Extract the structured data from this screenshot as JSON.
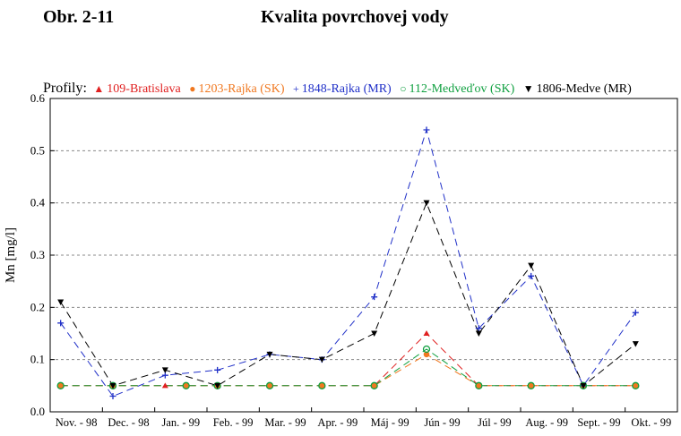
{
  "figure": {
    "label": "Obr. 2-11",
    "title": "Kvalita povrchovej vody"
  },
  "legend_title": "Profily:",
  "chart_data": {
    "type": "line",
    "ylabel": "Mn [mg/l]",
    "xlabel": "",
    "ylim": [
      0,
      0.6
    ],
    "yticks": [
      "0.0",
      "0.1",
      "0.2",
      "0.3",
      "0.4",
      "0.5",
      "0.6"
    ],
    "grid": "horizontal dashed",
    "legend_position": "top",
    "categories": [
      "Nov. - 98",
      "Dec. - 98",
      "Jan. - 99",
      "Feb. - 99",
      "Mar. - 99",
      "Apr. - 99",
      "Máj - 99",
      "Jún - 99",
      "Júl - 99",
      "Aug. - 99",
      "Sept. - 99",
      "Okt. - 99"
    ],
    "series": [
      {
        "name": "109-Bratislava",
        "color": "#e02020",
        "marker": "triangle-up",
        "points": [
          [
            0.2,
            0.05
          ],
          [
            1.2,
            0.05
          ],
          [
            2.2,
            0.05
          ],
          [
            3.2,
            0.05
          ],
          [
            4.2,
            0.05
          ],
          [
            5.2,
            0.05
          ],
          [
            6.2,
            0.05
          ],
          [
            7.2,
            0.15
          ],
          [
            8.2,
            0.05
          ],
          [
            9.2,
            0.05
          ],
          [
            10.2,
            0.05
          ],
          [
            11.2,
            0.05
          ]
        ]
      },
      {
        "name": "1203-Rajka (SK)",
        "color": "#f07820",
        "marker": "circle-filled",
        "points": [
          [
            0.2,
            0.05
          ],
          [
            1.2,
            0.05
          ],
          [
            2.6,
            0.05
          ],
          [
            3.2,
            0.05
          ],
          [
            4.2,
            0.05
          ],
          [
            5.2,
            0.05
          ],
          [
            6.2,
            0.05
          ],
          [
            7.2,
            0.11
          ],
          [
            8.2,
            0.05
          ],
          [
            9.2,
            0.05
          ],
          [
            10.2,
            0.05
          ],
          [
            11.2,
            0.05
          ]
        ]
      },
      {
        "name": "1848-Rajka (MR)",
        "color": "#2030c8",
        "marker": "plus",
        "points": [
          [
            0.2,
            0.17
          ],
          [
            1.2,
            0.03
          ],
          [
            2.2,
            0.07
          ],
          [
            3.2,
            0.08
          ],
          [
            4.2,
            0.11
          ],
          [
            5.2,
            0.1
          ],
          [
            6.2,
            0.22
          ],
          [
            7.2,
            0.54
          ],
          [
            8.2,
            0.16
          ],
          [
            9.2,
            0.26
          ],
          [
            10.2,
            0.05
          ],
          [
            11.2,
            0.19
          ]
        ]
      },
      {
        "name": "112-Medveďov (SK)",
        "color": "#10a040",
        "marker": "circle-open",
        "points": [
          [
            0.2,
            0.05
          ],
          [
            1.2,
            0.05
          ],
          [
            2.6,
            0.05
          ],
          [
            3.2,
            0.05
          ],
          [
            4.2,
            0.05
          ],
          [
            5.2,
            0.05
          ],
          [
            6.2,
            0.05
          ],
          [
            7.2,
            0.12
          ],
          [
            8.2,
            0.05
          ],
          [
            9.2,
            0.05
          ],
          [
            10.2,
            0.05
          ],
          [
            11.2,
            0.05
          ]
        ]
      },
      {
        "name": "1806-Medve (MR)",
        "color": "#000000",
        "marker": "triangle-down",
        "points": [
          [
            0.2,
            0.21
          ],
          [
            1.2,
            0.05
          ],
          [
            2.2,
            0.08
          ],
          [
            3.2,
            0.05
          ],
          [
            4.2,
            0.11
          ],
          [
            5.2,
            0.1
          ],
          [
            6.2,
            0.15
          ],
          [
            7.2,
            0.4
          ],
          [
            8.2,
            0.15
          ],
          [
            9.2,
            0.28
          ],
          [
            10.2,
            0.05
          ],
          [
            11.2,
            0.13
          ]
        ]
      }
    ]
  }
}
